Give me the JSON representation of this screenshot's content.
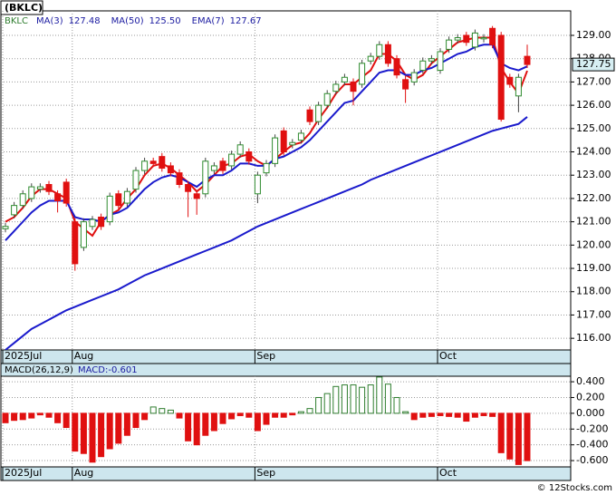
{
  "chart_data": [
    {
      "type": "candlestick",
      "title": "(BKLC)",
      "symbol": "BKLC",
      "categories": [
        "2025Jul",
        null,
        null,
        null,
        null,
        null,
        null,
        null,
        "Aug",
        null,
        null,
        null,
        null,
        null,
        null,
        null,
        null,
        null,
        null,
        null,
        null,
        null,
        null,
        null,
        null,
        null,
        null,
        null,
        null,
        "Sep",
        null,
        null,
        null,
        null,
        null,
        null,
        null,
        null,
        null,
        null,
        null,
        null,
        null,
        null,
        null,
        null,
        null,
        null,
        null,
        null,
        "Oct",
        null,
        null,
        null,
        null,
        null,
        null,
        null,
        null,
        null,
        null
      ],
      "open": [
        120.7,
        121.3,
        121.7,
        122.0,
        122.4,
        122.6,
        122.2,
        122.7,
        121.0,
        119.9,
        120.8,
        121.2,
        121.0,
        122.2,
        121.8,
        122.4,
        123.2,
        123.6,
        123.8,
        123.4,
        123.1,
        122.6,
        122.2,
        122.2,
        123.2,
        123.6,
        123.4,
        123.9,
        124.0,
        122.2,
        123.1,
        123.5,
        124.9,
        124.3,
        124.5,
        125.8,
        125.3,
        126.0,
        126.6,
        127.0,
        127.0,
        126.9,
        127.9,
        128.1,
        128.6,
        128.0,
        127.1,
        127.0,
        127.5,
        127.9,
        127.5,
        128.4,
        128.8,
        129.0,
        128.5,
        128.85,
        129.3,
        129.0,
        127.2,
        126.4,
        128.1
      ],
      "high": [
        120.95,
        121.85,
        122.35,
        122.65,
        122.65,
        122.75,
        122.35,
        122.85,
        121.15,
        121.15,
        121.25,
        121.35,
        122.25,
        122.35,
        122.45,
        123.35,
        123.75,
        123.75,
        123.95,
        123.55,
        123.25,
        122.75,
        122.35,
        123.75,
        123.55,
        123.75,
        124.05,
        124.45,
        124.15,
        123.15,
        123.65,
        124.75,
        125.05,
        124.55,
        124.95,
        125.95,
        126.15,
        126.65,
        127.05,
        127.35,
        127.15,
        127.95,
        128.25,
        128.75,
        128.75,
        128.15,
        127.25,
        127.55,
        128.05,
        128.15,
        128.45,
        128.95,
        129.05,
        129.15,
        129.25,
        129.05,
        129.4,
        129.15,
        127.35,
        127.35,
        128.6
      ],
      "low": [
        120.55,
        121.15,
        121.55,
        121.85,
        122.25,
        122.15,
        121.4,
        121.65,
        118.9,
        119.75,
        120.65,
        120.65,
        120.85,
        121.55,
        121.65,
        122.25,
        123.05,
        123.35,
        123.15,
        122.95,
        122.45,
        121.2,
        121.3,
        122.05,
        123.05,
        123.05,
        123.25,
        123.75,
        123.45,
        121.8,
        122.95,
        123.35,
        123.85,
        124.15,
        124.35,
        125.15,
        125.15,
        125.85,
        126.45,
        126.85,
        126.0,
        126.75,
        127.75,
        127.95,
        127.65,
        127.15,
        126.1,
        126.85,
        127.35,
        127.75,
        127.35,
        128.25,
        128.65,
        128.55,
        128.35,
        128.7,
        128.45,
        125.3,
        126.75,
        125.7,
        127.6
      ],
      "close": [
        120.8,
        121.7,
        122.2,
        122.5,
        122.5,
        122.3,
        121.9,
        121.8,
        119.2,
        121.0,
        121.1,
        120.8,
        122.1,
        121.7,
        122.3,
        123.2,
        123.6,
        123.5,
        123.3,
        123.1,
        122.6,
        122.3,
        122.0,
        123.6,
        123.4,
        123.2,
        123.9,
        124.3,
        123.6,
        123.0,
        123.5,
        124.6,
        124.0,
        124.4,
        124.8,
        125.3,
        126.0,
        126.5,
        126.9,
        127.2,
        126.6,
        127.8,
        128.1,
        128.6,
        127.8,
        127.3,
        126.7,
        127.4,
        127.9,
        128.0,
        128.3,
        128.8,
        128.9,
        128.7,
        129.1,
        128.9,
        128.6,
        125.4,
        126.9,
        127.2,
        127.75
      ],
      "up_color": "#2e8b2e",
      "down_color": "#e01010",
      "last_price_label": "127.75",
      "series": [
        {
          "name": "MA(3)",
          "value_label": "127.48",
          "color": "#e01010",
          "values": [
            121.0,
            121.2,
            121.6,
            122.1,
            122.4,
            122.4,
            122.2,
            122.0,
            121.0,
            120.7,
            120.4,
            121.0,
            121.3,
            121.5,
            122.0,
            122.4,
            123.0,
            123.4,
            123.5,
            123.3,
            123.0,
            122.7,
            122.3,
            122.6,
            123.0,
            123.4,
            123.5,
            123.8,
            123.9,
            123.6,
            123.4,
            123.7,
            124.0,
            124.3,
            124.4,
            124.8,
            125.4,
            125.9,
            126.5,
            126.9,
            126.9,
            127.2,
            127.5,
            128.2,
            128.2,
            127.9,
            127.3,
            127.1,
            127.3,
            127.8,
            128.1,
            128.4,
            128.7,
            128.8,
            128.9,
            128.9,
            128.9,
            127.6,
            127.0,
            126.5,
            127.48
          ]
        },
        {
          "name": "MA(50)",
          "value_label": "125.50",
          "color": "#1a1acc",
          "values": [
            115.5,
            115.8,
            116.1,
            116.4,
            116.6,
            116.8,
            117.0,
            117.2,
            117.35,
            117.5,
            117.65,
            117.8,
            117.95,
            118.1,
            118.3,
            118.5,
            118.7,
            118.85,
            119.0,
            119.15,
            119.3,
            119.45,
            119.6,
            119.75,
            119.9,
            120.05,
            120.2,
            120.4,
            120.6,
            120.8,
            120.95,
            121.1,
            121.25,
            121.4,
            121.55,
            121.7,
            121.85,
            122.0,
            122.15,
            122.3,
            122.45,
            122.6,
            122.8,
            122.95,
            123.1,
            123.25,
            123.4,
            123.55,
            123.7,
            123.85,
            124.0,
            124.15,
            124.3,
            124.45,
            124.6,
            124.75,
            124.9,
            125.0,
            125.1,
            125.2,
            125.5
          ]
        },
        {
          "name": "EMA(7)",
          "value_label": "127.67",
          "color": "#1a1acc",
          "values": [
            120.2,
            120.6,
            121.0,
            121.4,
            121.7,
            121.9,
            121.9,
            121.9,
            121.2,
            121.1,
            121.1,
            121.0,
            121.3,
            121.4,
            121.6,
            122.0,
            122.4,
            122.7,
            122.9,
            123.0,
            122.9,
            122.7,
            122.5,
            122.8,
            123.0,
            123.0,
            123.2,
            123.5,
            123.5,
            123.4,
            123.4,
            123.7,
            123.8,
            124.0,
            124.2,
            124.5,
            124.9,
            125.3,
            125.7,
            126.1,
            126.2,
            126.6,
            127.0,
            127.4,
            127.5,
            127.5,
            127.3,
            127.3,
            127.5,
            127.6,
            127.8,
            128.0,
            128.2,
            128.3,
            128.5,
            128.6,
            128.6,
            127.8,
            127.6,
            127.5,
            127.67
          ]
        }
      ],
      "ylim": [
        115.5,
        130.05
      ],
      "yticks": [
        {
          "value": 116,
          "label": "116.00"
        },
        {
          "value": 117,
          "label": "117.00"
        },
        {
          "value": 118,
          "label": "118.00"
        },
        {
          "value": 119,
          "label": "119.00"
        },
        {
          "value": 120,
          "label": "120.00"
        },
        {
          "value": 121,
          "label": "121.00"
        },
        {
          "value": 122,
          "label": "122.00"
        },
        {
          "value": 123,
          "label": "123.00"
        },
        {
          "value": 124,
          "label": "124.00"
        },
        {
          "value": 125,
          "label": "125.00"
        },
        {
          "value": 126,
          "label": "126.00"
        },
        {
          "value": 127,
          "label": "127.00"
        },
        {
          "value": 128,
          "label": "128.00"
        },
        {
          "value": 129,
          "label": "129.00"
        }
      ],
      "grid": true
    },
    {
      "type": "bar",
      "title": "MACD(26,12,9)",
      "value_label": "MACD:-0.601",
      "categories": [
        "2025Jul",
        null,
        null,
        null,
        null,
        null,
        null,
        null,
        "Aug",
        null,
        null,
        null,
        null,
        null,
        null,
        null,
        null,
        null,
        null,
        null,
        null,
        null,
        null,
        null,
        null,
        null,
        null,
        null,
        null,
        "Sep",
        null,
        null,
        null,
        null,
        null,
        null,
        null,
        null,
        null,
        null,
        null,
        null,
        null,
        null,
        null,
        null,
        null,
        null,
        null,
        null,
        "Oct",
        null,
        null,
        null,
        null,
        null,
        null,
        null,
        null,
        null,
        null
      ],
      "values": [
        -0.12,
        -0.09,
        -0.08,
        -0.06,
        -0.02,
        -0.05,
        -0.12,
        -0.18,
        -0.48,
        -0.51,
        -0.62,
        -0.55,
        -0.45,
        -0.38,
        -0.28,
        -0.18,
        -0.08,
        0.08,
        0.06,
        0.04,
        -0.06,
        -0.35,
        -0.4,
        -0.28,
        -0.22,
        -0.13,
        -0.07,
        -0.03,
        -0.05,
        -0.22,
        -0.14,
        -0.05,
        -0.05,
        -0.02,
        0.02,
        0.06,
        0.2,
        0.25,
        0.34,
        0.36,
        0.36,
        0.33,
        0.36,
        0.46,
        0.37,
        0.2,
        0.02,
        -0.08,
        -0.05,
        -0.04,
        -0.03,
        -0.04,
        -0.05,
        -0.1,
        -0.05,
        -0.03,
        -0.04,
        -0.5,
        -0.58,
        -0.65,
        -0.601
      ],
      "up_color": "#2e7d2e",
      "down_color": "#e01010",
      "ylim": [
        -0.68,
        0.47
      ],
      "yticks": [
        {
          "value": 0.4,
          "label": "0.400"
        },
        {
          "value": 0.2,
          "label": "0.200"
        },
        {
          "value": 0,
          "label": "0.000"
        },
        {
          "value": -0.2,
          "label": "-0.200"
        },
        {
          "value": -0.4,
          "label": "-0.400"
        },
        {
          "value": -0.6,
          "label": "-0.600"
        }
      ],
      "grid": true
    }
  ],
  "watermark": "© 12Stocks.com"
}
